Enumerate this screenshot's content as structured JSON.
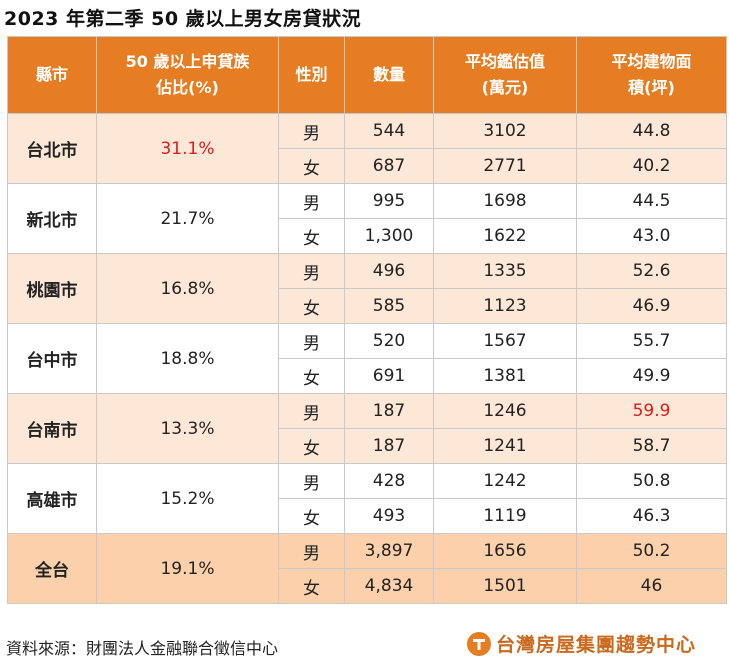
{
  "title": "2023 年第二季 50 歲以上男女房貸狀況",
  "headers": {
    "county": "縣市",
    "share_line1": "50 歲以上申貸族",
    "share_line2": "佔比(%)",
    "gender": "性別",
    "count": "數量",
    "price_line1": "平均鑑估值",
    "price_line2": "(萬元)",
    "area_line1": "平均建物面",
    "area_line2": "積(坪)"
  },
  "groups": [
    {
      "city": "台北市",
      "share": "31.1%",
      "rows": [
        {
          "gender": "男",
          "count": "544",
          "price": "3102",
          "area": "44.8"
        },
        {
          "gender": "女",
          "count": "687",
          "price": "2771",
          "area": "40.2"
        }
      ]
    },
    {
      "city": "新北市",
      "share": "21.7%",
      "rows": [
        {
          "gender": "男",
          "count": "995",
          "price": "1698",
          "area": "44.5"
        },
        {
          "gender": "女",
          "count": "1,300",
          "price": "1622",
          "area": "43.0"
        }
      ]
    },
    {
      "city": "桃園市",
      "share": "16.8%",
      "rows": [
        {
          "gender": "男",
          "count": "496",
          "price": "1335",
          "area": "52.6"
        },
        {
          "gender": "女",
          "count": "585",
          "price": "1123",
          "area": "46.9"
        }
      ]
    },
    {
      "city": "台中市",
      "share": "18.8%",
      "rows": [
        {
          "gender": "男",
          "count": "520",
          "price": "1567",
          "area": "55.7"
        },
        {
          "gender": "女",
          "count": "691",
          "price": "1381",
          "area": "49.9"
        }
      ]
    },
    {
      "city": "台南市",
      "share": "13.3%",
      "rows": [
        {
          "gender": "男",
          "count": "187",
          "price": "1246",
          "area": "59.9"
        },
        {
          "gender": "女",
          "count": "187",
          "price": "1241",
          "area": "58.7"
        }
      ]
    },
    {
      "city": "高雄市",
      "share": "15.2%",
      "rows": [
        {
          "gender": "男",
          "count": "428",
          "price": "1242",
          "area": "50.8"
        },
        {
          "gender": "女",
          "count": "493",
          "price": "1119",
          "area": "46.3"
        }
      ]
    },
    {
      "city": "全台",
      "share": "19.1%",
      "rows": [
        {
          "gender": "男",
          "count": "3,897",
          "price": "1656",
          "area": "50.2"
        },
        {
          "gender": "女",
          "count": "4,834",
          "price": "1501",
          "area": "46"
        }
      ]
    }
  ],
  "colors": {
    "header_bg": "#e67d22",
    "shade_bg": "#fde7d6",
    "total_bg": "#fbd0ab",
    "highlight": "#d81e1e"
  },
  "highlights": [
    "台北市 50 歲以上申貸族佔比 31.1%",
    "台南市 男 平均建物面積 59.9"
  ],
  "footer": {
    "source": "資料來源：財團法人金融聯合徵信中心",
    "logo_text": "台灣房屋集團趨勢中心",
    "logo_icon": "taiwan-realty-logo-icon"
  }
}
